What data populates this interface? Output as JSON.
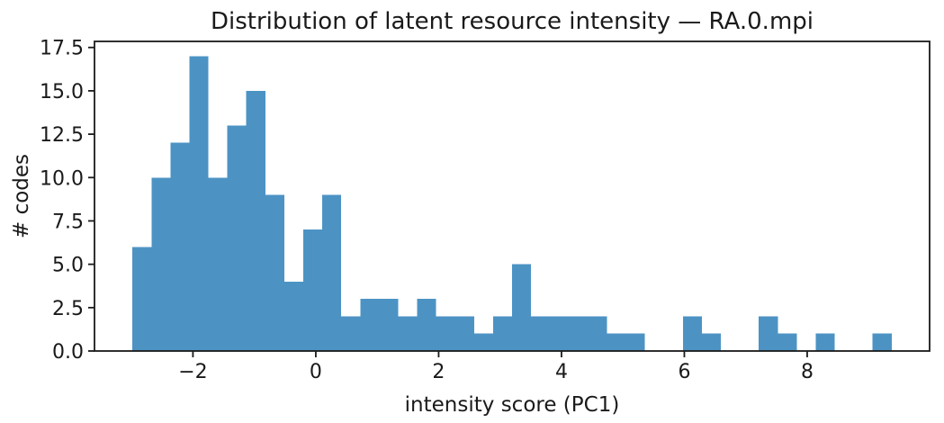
{
  "chart_data": {
    "type": "bar",
    "subtype": "histogram",
    "title": "Distribution of latent resource intensity — RA.0.mpi",
    "xlabel": "intensity score (PC1)",
    "ylabel": "# codes",
    "bar_color": "#4c93c4",
    "axis_color": "#1a1a1a",
    "bin_edges": [
      -2.985,
      -2.676,
      -2.367,
      -2.058,
      -1.749,
      -1.44,
      -1.131,
      -0.822,
      -0.513,
      -0.204,
      0.105,
      0.414,
      0.723,
      1.032,
      1.341,
      1.65,
      1.959,
      2.268,
      2.577,
      2.886,
      3.195,
      3.504,
      3.813,
      4.122,
      4.431,
      4.74,
      5.049,
      5.358,
      5.667,
      5.976,
      6.285,
      6.594,
      6.903,
      7.212,
      7.521,
      7.83,
      8.139,
      8.448,
      8.757,
      9.066,
      9.375
    ],
    "counts": [
      6,
      10,
      12,
      17,
      10,
      13,
      15,
      9,
      4,
      7,
      9,
      2,
      3,
      3,
      2,
      3,
      2,
      2,
      1,
      2,
      5,
      2,
      2,
      2,
      2,
      1,
      1,
      0,
      0,
      2,
      1,
      0,
      0,
      2,
      1,
      0,
      1,
      0,
      0,
      1
    ],
    "total_count": 155,
    "xticks": [
      -2,
      0,
      2,
      4,
      6,
      8
    ],
    "xtick_labels": [
      "−2",
      "0",
      "2",
      "4",
      "6",
      "8"
    ],
    "yticks": [
      0,
      2.5,
      5,
      7.5,
      10,
      12.5,
      15,
      17.5
    ],
    "ytick_labels": [
      "0.0",
      "2.5",
      "5.0",
      "7.5",
      "10.0",
      "12.5",
      "15.0",
      "17.5"
    ],
    "xlim": [
      -3.603,
      9.993
    ],
    "ylim": [
      0,
      17.85
    ],
    "grid": false,
    "legend": null
  }
}
